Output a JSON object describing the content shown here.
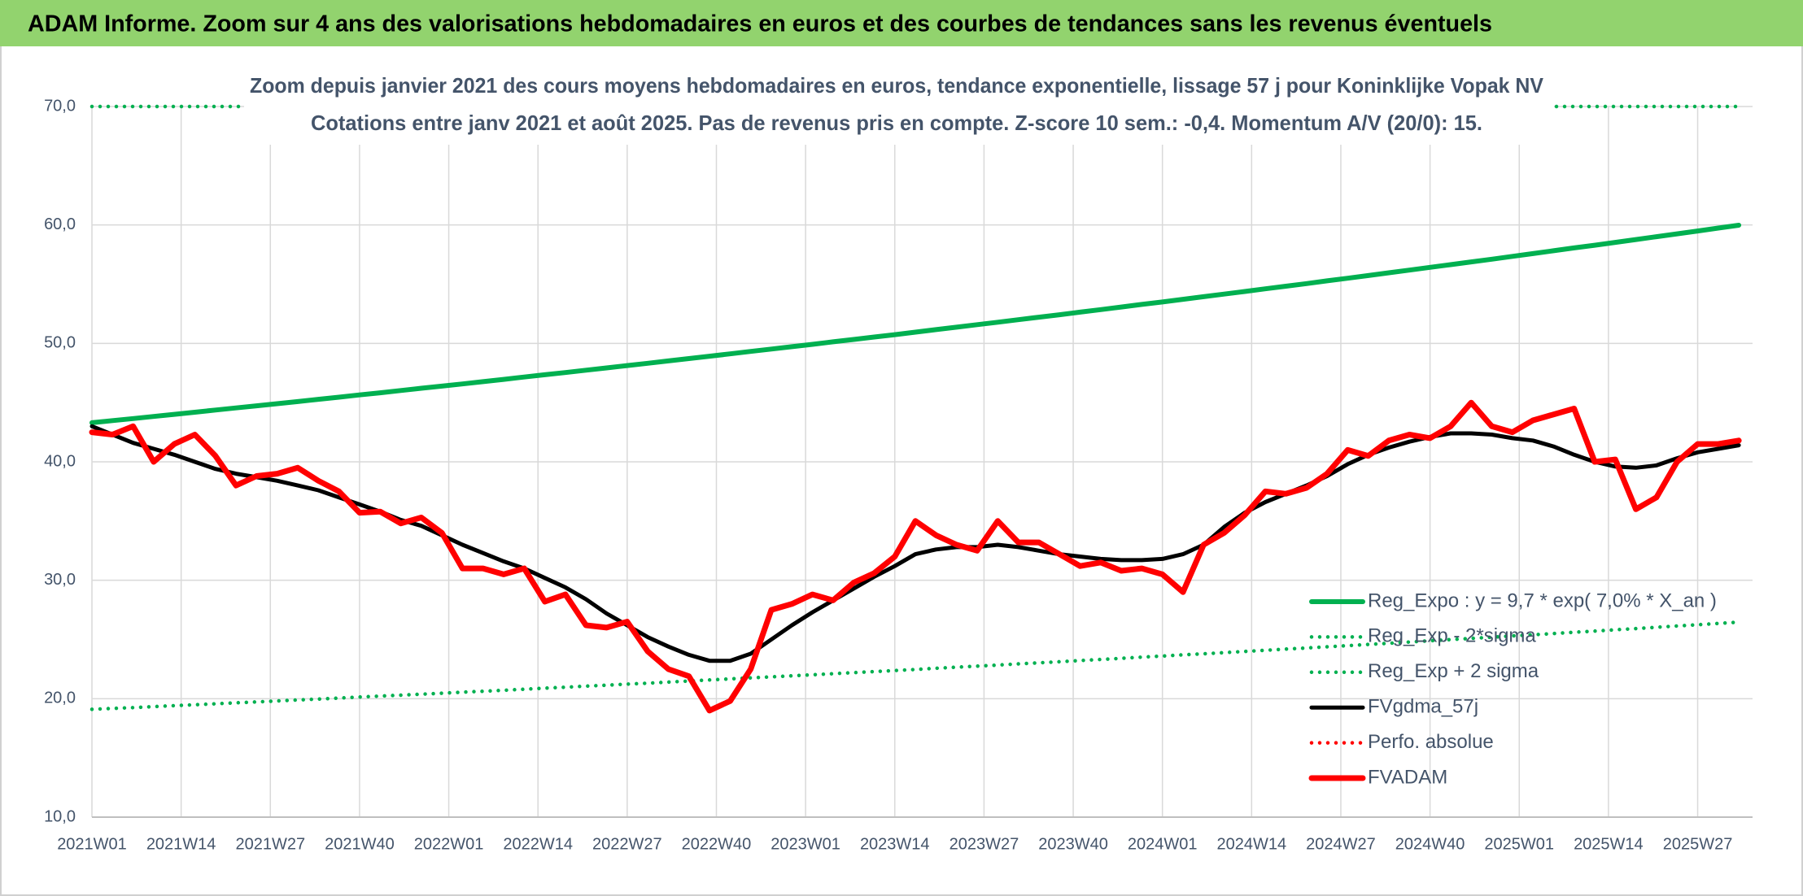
{
  "chart_data": {
    "type": "line",
    "header": "ADAM Informe. Zoom sur 4 ans des valorisations hebdomadaires en euros et des courbes de tendances sans les revenus éventuels",
    "title": "Zoom depuis janvier 2021 des cours moyens hebdomadaires en euros, tendance exponentielle, lissage 57 j pour Koninklijke Vopak NV",
    "subtitle": "Cotations entre janv 2021 et août 2025. Pas de revenus pris en compte. Z-score 10 sem.: -0,4. Momentum A/V (20/0): 15.",
    "x": [
      0,
      3,
      6,
      9,
      12,
      15,
      18,
      21,
      24,
      27,
      30,
      33,
      36,
      39,
      42,
      45,
      48,
      51,
      54,
      57,
      60,
      63,
      66,
      69,
      72,
      75,
      78,
      81,
      84,
      87,
      90,
      93,
      96,
      99,
      102,
      105,
      108,
      111,
      114,
      117,
      120,
      123,
      126,
      129,
      132,
      135,
      138,
      141,
      144,
      147,
      150,
      153,
      156,
      159,
      162,
      165,
      168,
      171,
      174,
      177,
      180,
      183,
      186,
      189,
      192,
      195,
      198,
      201,
      204,
      207,
      210,
      213,
      216,
      219,
      222,
      225,
      228,
      231,
      234,
      237,
      240
    ],
    "xlim": [
      0,
      242
    ],
    "xticks": [
      {
        "value": 0,
        "label": "2021W01"
      },
      {
        "value": 13,
        "label": "2021W14"
      },
      {
        "value": 26,
        "label": "2021W27"
      },
      {
        "value": 39,
        "label": "2021W40"
      },
      {
        "value": 52,
        "label": "2022W01"
      },
      {
        "value": 65,
        "label": "2022W14"
      },
      {
        "value": 78,
        "label": "2022W27"
      },
      {
        "value": 91,
        "label": "2022W40"
      },
      {
        "value": 104,
        "label": "2023W01"
      },
      {
        "value": 117,
        "label": "2023W14"
      },
      {
        "value": 130,
        "label": "2023W27"
      },
      {
        "value": 143,
        "label": "2023W40"
      },
      {
        "value": 156,
        "label": "2024W01"
      },
      {
        "value": 169,
        "label": "2024W14"
      },
      {
        "value": 182,
        "label": "2024W27"
      },
      {
        "value": 195,
        "label": "2024W40"
      },
      {
        "value": 208,
        "label": "2025W01"
      },
      {
        "value": 221,
        "label": "2025W14"
      },
      {
        "value": 234,
        "label": "2025W27"
      }
    ],
    "ylim": [
      10,
      70
    ],
    "yticks": [
      {
        "value": 10,
        "label": "10,0"
      },
      {
        "value": 20,
        "label": "20,0"
      },
      {
        "value": 30,
        "label": "30,0"
      },
      {
        "value": 40,
        "label": "40,0"
      },
      {
        "value": 50,
        "label": "50,0"
      },
      {
        "value": 60,
        "label": "60,0"
      },
      {
        "value": 70,
        "label": "70,0"
      }
    ],
    "grid": true,
    "series": [
      {
        "name": "Reg_Expo : y = 9,7 * exp( 7,0% *  X_an )",
        "color": "#00b050",
        "style": "solid",
        "width": 6,
        "values": [
          43.3,
          43.48,
          43.65,
          43.83,
          44.01,
          44.19,
          44.37,
          44.55,
          44.73,
          44.91,
          45.09,
          45.28,
          45.46,
          45.65,
          45.83,
          46.02,
          46.21,
          46.39,
          46.58,
          46.77,
          46.96,
          47.16,
          47.35,
          47.54,
          47.74,
          47.93,
          48.13,
          48.32,
          48.52,
          48.72,
          48.92,
          49.12,
          49.32,
          49.52,
          49.72,
          49.92,
          50.13,
          50.33,
          50.54,
          50.74,
          50.95,
          51.16,
          51.37,
          51.58,
          51.79,
          52.0,
          52.21,
          52.42,
          52.64,
          52.85,
          53.07,
          53.29,
          53.5,
          53.72,
          53.94,
          54.16,
          54.38,
          54.61,
          54.83,
          55.05,
          55.28,
          55.5,
          55.73,
          55.96,
          56.19,
          56.42,
          56.65,
          56.88,
          57.11,
          57.35,
          57.58,
          57.82,
          58.06,
          58.29,
          58.53,
          58.77,
          59.01,
          59.25,
          59.49,
          59.74,
          59.98
        ]
      },
      {
        "name": "Reg_Exp - 2*sigma",
        "color": "#00b050",
        "style": "dotted",
        "width": 4.5,
        "values": [
          19.1,
          19.18,
          19.25,
          19.33,
          19.41,
          19.49,
          19.57,
          19.65,
          19.73,
          19.81,
          19.89,
          19.97,
          20.05,
          20.14,
          20.22,
          20.3,
          20.38,
          20.46,
          20.55,
          20.63,
          20.71,
          20.8,
          20.89,
          20.97,
          21.06,
          21.14,
          21.23,
          21.31,
          21.4,
          21.49,
          21.58,
          21.67,
          21.76,
          21.84,
          21.93,
          22.02,
          22.11,
          22.2,
          22.29,
          22.38,
          22.47,
          22.57,
          22.66,
          22.75,
          22.84,
          22.94,
          23.03,
          23.12,
          23.22,
          23.31,
          23.41,
          23.51,
          23.6,
          23.7,
          23.79,
          23.89,
          23.99,
          24.09,
          24.19,
          24.28,
          24.38,
          24.48,
          24.58,
          24.68,
          24.79,
          24.89,
          24.99,
          25.09,
          25.19,
          25.3,
          25.4,
          25.5,
          25.61,
          25.71,
          25.82,
          25.92,
          26.03,
          26.14,
          26.24,
          26.35,
          26.46
        ]
      },
      {
        "name": "Reg_Exp + 2 sigma",
        "color": "#00b050",
        "style": "dotted",
        "width": 4.5,
        "values": [
          70,
          70,
          70,
          70,
          70,
          70,
          70,
          70,
          70,
          70,
          70,
          70,
          70,
          70,
          70,
          70,
          70,
          70,
          70,
          70,
          70,
          70,
          70,
          70,
          70,
          70,
          70,
          70,
          70,
          70,
          70,
          70,
          70,
          70,
          70,
          70,
          70,
          70,
          70,
          70,
          70,
          70,
          70,
          70,
          70,
          70,
          70,
          70,
          70,
          70,
          70,
          70,
          70,
          70,
          70,
          70,
          70,
          70,
          70,
          70,
          70,
          70,
          70,
          70,
          70,
          70,
          70,
          70,
          70,
          70,
          70,
          70,
          70,
          70,
          70,
          70,
          70,
          70,
          70,
          70,
          70
        ]
      },
      {
        "name": "FVgdma_57j",
        "color": "#000000",
        "style": "solid",
        "width": 5,
        "values": [
          43.0,
          42.3,
          41.6,
          41.1,
          40.6,
          40.0,
          39.4,
          39.0,
          38.7,
          38.4,
          38.0,
          37.6,
          37.0,
          36.4,
          35.8,
          35.1,
          34.6,
          33.8,
          33.0,
          32.3,
          31.6,
          31.0,
          30.2,
          29.4,
          28.4,
          27.2,
          26.2,
          25.2,
          24.4,
          23.7,
          23.2,
          23.2,
          23.8,
          25.0,
          26.2,
          27.3,
          28.3,
          29.3,
          30.3,
          31.2,
          32.2,
          32.6,
          32.8,
          32.8,
          33.0,
          32.8,
          32.5,
          32.2,
          32.0,
          31.8,
          31.7,
          31.7,
          31.8,
          32.2,
          33.0,
          34.5,
          35.7,
          36.6,
          37.3,
          38.0,
          38.8,
          39.8,
          40.6,
          41.2,
          41.7,
          42.1,
          42.4,
          42.4,
          42.3,
          42.0,
          41.8,
          41.3,
          40.6,
          40.0,
          39.6,
          39.5,
          39.7,
          40.3,
          40.8,
          41.1,
          41.4
        ]
      },
      {
        "name": "Perfo. absolue",
        "color": "#ff0000",
        "style": "dotted",
        "width": 4.5,
        "values": [
          null,
          null,
          null,
          null,
          null,
          null,
          null,
          null,
          null,
          null,
          null,
          null,
          null,
          null,
          null,
          null,
          null,
          null,
          null,
          null,
          null,
          null,
          null,
          null,
          null,
          null,
          null,
          null,
          null,
          null,
          null,
          null,
          null,
          null,
          null,
          null,
          null,
          null,
          null,
          null,
          null,
          null,
          null,
          null,
          null,
          null,
          null,
          null,
          null,
          null,
          null,
          null,
          null,
          null,
          null,
          null,
          null,
          null,
          null,
          null,
          null,
          null,
          null,
          null,
          null,
          null,
          null,
          null,
          null,
          null,
          null,
          null,
          null,
          null,
          null,
          null,
          null,
          null,
          null,
          null,
          null
        ]
      },
      {
        "name": "FVADAM",
        "color": "#ff0000",
        "style": "solid",
        "width": 7,
        "values": [
          42.5,
          42.3,
          43.0,
          40.0,
          41.5,
          42.3,
          40.5,
          38.0,
          38.8,
          39.0,
          39.5,
          38.4,
          37.5,
          35.7,
          35.8,
          34.8,
          35.3,
          34.0,
          31.0,
          31.0,
          30.5,
          31.0,
          28.2,
          28.8,
          26.2,
          26.0,
          26.5,
          24.0,
          22.5,
          21.9,
          19.0,
          19.8,
          22.5,
          27.5,
          28.0,
          28.8,
          28.3,
          29.8,
          30.6,
          32.0,
          35.0,
          33.8,
          33.0,
          32.5,
          35.0,
          33.2,
          33.2,
          32.2,
          31.2,
          31.5,
          30.8,
          31.0,
          30.5,
          29.0,
          33.0,
          34.0,
          35.5,
          37.5,
          37.3,
          37.8,
          39.0,
          41.0,
          40.5,
          41.8,
          42.3,
          42.0,
          43.0,
          45.0,
          43.0,
          42.5,
          43.5,
          44.0,
          44.5,
          40.0,
          40.2,
          36.0,
          37.0,
          40.0,
          41.5,
          41.5,
          41.8
        ]
      }
    ]
  }
}
